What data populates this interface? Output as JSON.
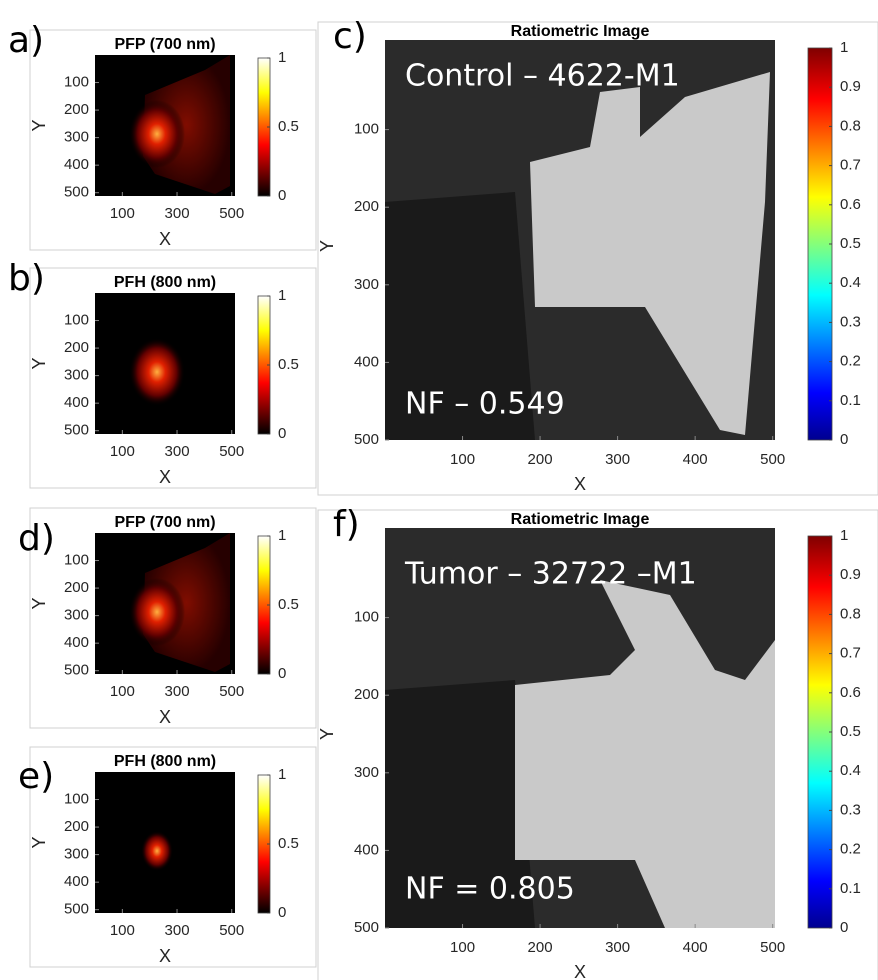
{
  "panels": [
    {
      "label": "a)",
      "title": "PFP (700 nm)",
      "xlabel": "X",
      "ylabel": "Y",
      "xlim": [
        0,
        512
      ],
      "ylim": [
        0,
        512
      ],
      "xticks": [
        100,
        300,
        500
      ],
      "yticks": [
        100,
        200,
        300,
        400,
        500
      ],
      "clim": [
        0,
        1
      ],
      "colorbar_ticks": [
        0,
        0.5,
        1
      ],
      "colormap": "hot"
    },
    {
      "label": "b)",
      "title": "PFH (800 nm)",
      "xlabel": "X",
      "ylabel": "Y",
      "xlim": [
        0,
        512
      ],
      "ylim": [
        0,
        512
      ],
      "xticks": [
        100,
        300,
        500
      ],
      "yticks": [
        100,
        200,
        300,
        400,
        500
      ],
      "clim": [
        0,
        1
      ],
      "colorbar_ticks": [
        0,
        0.5,
        1
      ],
      "colormap": "hot"
    },
    {
      "label": "c)",
      "title": "Ratiometric Image",
      "xlabel": "X",
      "ylabel": "Y",
      "xlim": [
        0,
        503
      ],
      "ylim": [
        0,
        500
      ],
      "xticks": [
        100,
        200,
        300,
        400,
        500
      ],
      "yticks": [
        100,
        200,
        300,
        400,
        500
      ],
      "clim": [
        0,
        1
      ],
      "colorbar_ticks": [
        0,
        0.1,
        0.2,
        0.3,
        0.4,
        0.5,
        0.6,
        0.7,
        0.8,
        0.9,
        1
      ],
      "colormap": "jet",
      "annotations": [
        "Control – 4622-M1",
        "NF – 0.549"
      ]
    },
    {
      "label": "d)",
      "title": "PFP (700 nm)",
      "xlabel": "X",
      "ylabel": "Y",
      "xlim": [
        0,
        512
      ],
      "ylim": [
        0,
        512
      ],
      "xticks": [
        100,
        300,
        500
      ],
      "yticks": [
        100,
        200,
        300,
        400,
        500
      ],
      "clim": [
        0,
        1
      ],
      "colorbar_ticks": [
        0,
        0.5,
        1
      ],
      "colormap": "hot"
    },
    {
      "label": "e)",
      "title": "PFH (800 nm)",
      "xlabel": "X",
      "ylabel": "Y",
      "xlim": [
        0,
        512
      ],
      "ylim": [
        0,
        512
      ],
      "xticks": [
        100,
        300,
        500
      ],
      "yticks": [
        100,
        200,
        300,
        400,
        500
      ],
      "clim": [
        0,
        1
      ],
      "colorbar_ticks": [
        0,
        0.5,
        1
      ],
      "colormap": "hot"
    },
    {
      "label": "f)",
      "title": "Ratiometric Image",
      "xlabel": "X",
      "ylabel": "Y",
      "xlim": [
        0,
        503
      ],
      "ylim": [
        0,
        500
      ],
      "xticks": [
        100,
        200,
        300,
        400,
        500
      ],
      "yticks": [
        100,
        200,
        300,
        400,
        500
      ],
      "clim": [
        0,
        1
      ],
      "colorbar_ticks": [
        0,
        0.1,
        0.2,
        0.3,
        0.4,
        0.5,
        0.6,
        0.7,
        0.8,
        0.9,
        1
      ],
      "colormap": "jet",
      "annotations": [
        "Tumor – 32722 –M1",
        "NF = 0.805"
      ]
    }
  ]
}
